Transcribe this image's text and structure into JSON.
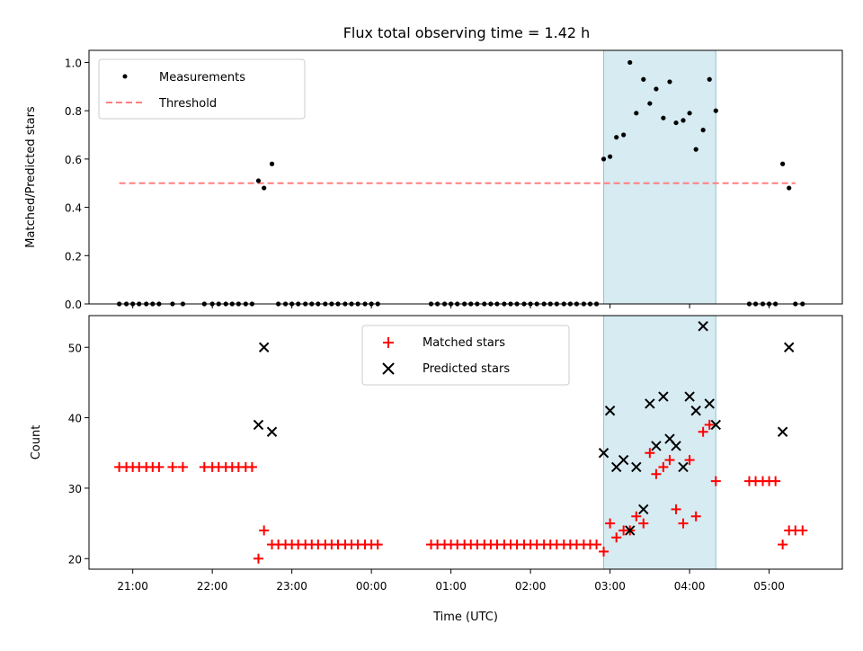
{
  "chart_data": [
    {
      "type": "scatter",
      "title": "Flux total observing time = 1.42 h",
      "xlabel": "",
      "ylabel": "Matched/Predicted stars",
      "ylim": [
        0,
        1.05
      ],
      "yticks": [
        0.0,
        0.2,
        0.4,
        0.6,
        0.8,
        1.0
      ],
      "ytick_labels": [
        "0.0",
        "0.2",
        "0.4",
        "0.6",
        "0.8",
        "1.0"
      ],
      "xlim_hours": [
        20.45,
        29.92
      ],
      "xticks_hours": [
        21,
        22,
        23,
        24,
        25,
        26,
        27,
        28,
        29
      ],
      "highlight_span_hours": [
        26.92,
        28.33
      ],
      "legend": {
        "placement": "top-left",
        "entries": [
          "Measurements",
          "Threshold"
        ]
      },
      "threshold": {
        "name": "Threshold",
        "value": 0.5,
        "x_range_hours": [
          20.83,
          29.33
        ],
        "color": "#ff7f7f"
      },
      "series": [
        {
          "name": "Measurements",
          "color": "#000000",
          "x_hours": [
            20.83,
            20.92,
            21.0,
            21.08,
            21.17,
            21.25,
            21.33,
            21.5,
            21.63,
            21.9,
            22.0,
            22.08,
            22.17,
            22.25,
            22.33,
            22.42,
            22.5,
            22.58,
            22.65,
            22.75,
            22.83,
            22.92,
            23.0,
            23.08,
            23.17,
            23.25,
            23.33,
            23.42,
            23.5,
            23.58,
            23.67,
            23.75,
            23.83,
            23.92,
            24.0,
            24.08,
            24.75,
            24.83,
            24.92,
            25.0,
            25.08,
            25.17,
            25.25,
            25.33,
            25.42,
            25.5,
            25.58,
            25.67,
            25.75,
            25.83,
            25.92,
            26.0,
            26.08,
            26.17,
            26.25,
            26.33,
            26.42,
            26.5,
            26.58,
            26.67,
            26.75,
            26.83,
            26.92,
            27.0,
            27.08,
            27.17,
            27.25,
            27.33,
            27.42,
            27.5,
            27.58,
            27.67,
            27.75,
            27.83,
            27.92,
            28.0,
            28.08,
            28.17,
            28.25,
            28.33,
            28.75,
            28.83,
            28.92,
            29.0,
            29.08,
            29.17,
            29.25,
            29.33,
            29.42
          ],
          "y": [
            0,
            0,
            0,
            0,
            0,
            0,
            0,
            0,
            0,
            0,
            0,
            0,
            0,
            0,
            0,
            0,
            0,
            0.51,
            0.48,
            0.58,
            0,
            0,
            0,
            0,
            0,
            0,
            0,
            0,
            0,
            0,
            0,
            0,
            0,
            0,
            0,
            0,
            0,
            0,
            0,
            0,
            0,
            0,
            0,
            0,
            0,
            0,
            0,
            0,
            0,
            0,
            0,
            0,
            0,
            0,
            0,
            0,
            0,
            0,
            0,
            0,
            0,
            0,
            0.6,
            0.61,
            0.69,
            0.7,
            1.0,
            0.79,
            0.93,
            0.83,
            0.89,
            0.77,
            0.92,
            0.75,
            0.76,
            0.79,
            0.64,
            0.72,
            0.93,
            0.8,
            0,
            0,
            0,
            0,
            0,
            0.58,
            0.48,
            0,
            0
          ]
        }
      ]
    },
    {
      "type": "scatter",
      "title": "",
      "xlabel": "Time (UTC)",
      "ylabel": "Count",
      "ylim": [
        18.5,
        54.5
      ],
      "yticks": [
        20,
        30,
        40,
        50
      ],
      "ytick_labels": [
        "20",
        "30",
        "40",
        "50"
      ],
      "xlim_hours": [
        20.45,
        29.92
      ],
      "xticks_hours": [
        21,
        22,
        23,
        24,
        25,
        26,
        27,
        28,
        29
      ],
      "xtick_labels": [
        "21:00",
        "22:00",
        "23:00",
        "00:00",
        "01:00",
        "02:00",
        "03:00",
        "04:00",
        "05:00"
      ],
      "highlight_span_hours": [
        26.92,
        28.33
      ],
      "legend": {
        "placement": "top-center",
        "entries": [
          "Matched stars",
          "Predicted stars"
        ]
      },
      "series": [
        {
          "name": "Matched stars",
          "marker": "+",
          "color": "#ff0000",
          "x_hours": [
            20.83,
            20.92,
            21.0,
            21.08,
            21.17,
            21.25,
            21.33,
            21.5,
            21.63,
            21.9,
            22.0,
            22.08,
            22.17,
            22.25,
            22.33,
            22.42,
            22.5,
            22.58,
            22.65,
            22.75,
            22.83,
            22.92,
            23.0,
            23.08,
            23.17,
            23.25,
            23.33,
            23.42,
            23.5,
            23.58,
            23.67,
            23.75,
            23.83,
            23.92,
            24.0,
            24.08,
            24.75,
            24.83,
            24.92,
            25.0,
            25.08,
            25.17,
            25.25,
            25.33,
            25.42,
            25.5,
            25.58,
            25.67,
            25.75,
            25.83,
            25.92,
            26.0,
            26.08,
            26.17,
            26.25,
            26.33,
            26.42,
            26.5,
            26.58,
            26.67,
            26.75,
            26.83,
            26.92,
            27.0,
            27.08,
            27.17,
            27.25,
            27.33,
            27.42,
            27.5,
            27.58,
            27.67,
            27.75,
            27.83,
            27.92,
            28.0,
            28.08,
            28.17,
            28.25,
            28.33,
            28.75,
            28.83,
            28.92,
            29.0,
            29.08,
            29.17,
            29.25,
            29.33,
            29.42
          ],
          "y": [
            33,
            33,
            33,
            33,
            33,
            33,
            33,
            33,
            33,
            33,
            33,
            33,
            33,
            33,
            33,
            33,
            33,
            20,
            24,
            22,
            22,
            22,
            22,
            22,
            22,
            22,
            22,
            22,
            22,
            22,
            22,
            22,
            22,
            22,
            22,
            22,
            22,
            22,
            22,
            22,
            22,
            22,
            22,
            22,
            22,
            22,
            22,
            22,
            22,
            22,
            22,
            22,
            22,
            22,
            22,
            22,
            22,
            22,
            22,
            22,
            22,
            22,
            21,
            25,
            23,
            24,
            24,
            26,
            25,
            35,
            32,
            33,
            34,
            27,
            25,
            34,
            26,
            38,
            39,
            31,
            31,
            31,
            31,
            31,
            31,
            22,
            24,
            24,
            24
          ]
        },
        {
          "name": "Predicted stars",
          "marker": "x",
          "color": "#000000",
          "x_hours": [
            22.58,
            22.65,
            22.75,
            26.92,
            27.0,
            27.08,
            27.17,
            27.25,
            27.33,
            27.42,
            27.5,
            27.58,
            27.67,
            27.75,
            27.83,
            27.92,
            28.0,
            28.08,
            28.17,
            28.25,
            28.33,
            29.17,
            29.25
          ],
          "y": [
            39,
            50,
            38,
            35,
            41,
            33,
            34,
            24,
            33,
            27,
            42,
            36,
            43,
            37,
            36,
            33,
            43,
            41,
            53,
            42,
            39,
            38,
            50
          ]
        }
      ]
    }
  ]
}
